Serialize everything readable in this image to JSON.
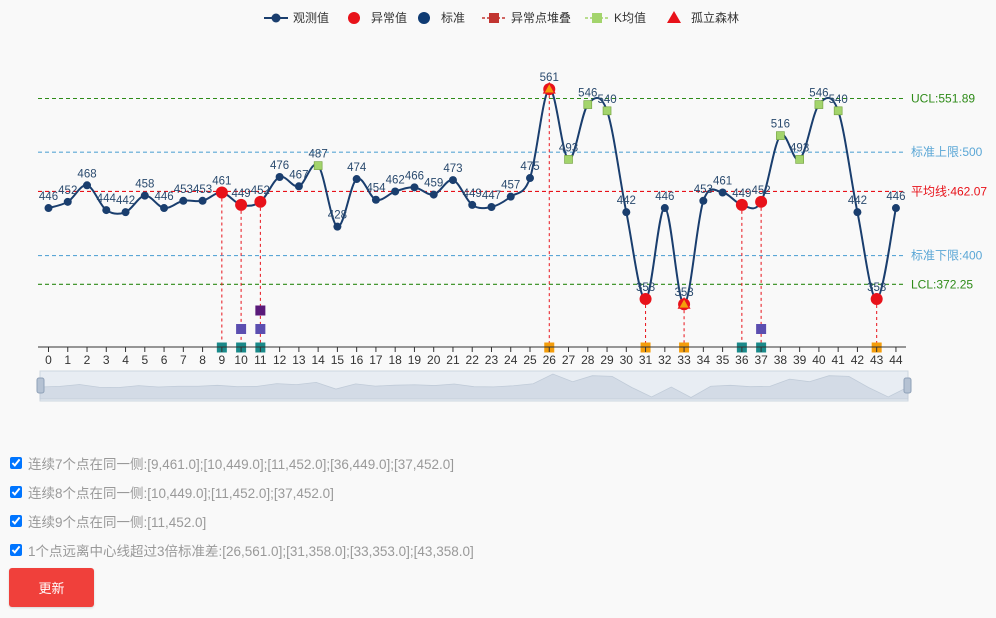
{
  "chart_data": {
    "type": "line",
    "legend": [
      {
        "name": "观测值",
        "color": "#1a3e6e",
        "symbol": "line-circle"
      },
      {
        "name": "异常值",
        "color": "#e8121a",
        "symbol": "circle"
      },
      {
        "name": "标准",
        "color": "#0f3b73",
        "symbol": "circle"
      },
      {
        "name": "异常点堆叠",
        "color": "#c23531",
        "symbol": "line-square"
      },
      {
        "name": "K均值",
        "color": "#a3d46c",
        "symbol": "line-square"
      },
      {
        "name": "孤立森林",
        "color": "#e8121a",
        "symbol": "triangle"
      }
    ],
    "x": [
      0,
      1,
      2,
      3,
      4,
      5,
      6,
      7,
      8,
      9,
      10,
      11,
      12,
      13,
      14,
      15,
      16,
      17,
      18,
      19,
      20,
      21,
      22,
      23,
      24,
      25,
      26,
      27,
      28,
      29,
      30,
      31,
      32,
      33,
      34,
      35,
      36,
      37,
      38,
      39,
      40,
      41,
      42,
      43,
      44
    ],
    "values": [
      446,
      452,
      468,
      444,
      442,
      458,
      446,
      453,
      453,
      461,
      449,
      452,
      476,
      467,
      487,
      428,
      474,
      454,
      462,
      466,
      459,
      473,
      449,
      447,
      457,
      475,
      561,
      493,
      546,
      540,
      442,
      358,
      446,
      353,
      453,
      461,
      449,
      452,
      516,
      493,
      546,
      540,
      442,
      358,
      446
    ],
    "value_labels": [
      "446",
      "452",
      "468",
      "444",
      "442",
      "458",
      "446",
      "453",
      "453",
      "461",
      "449",
      "452",
      "476",
      "467",
      "487",
      "428",
      "474",
      "454",
      "462",
      "466",
      "459",
      "473",
      "449",
      "447",
      "457",
      "475",
      "561",
      "493",
      "546",
      "540",
      "442",
      "358",
      "446",
      "353",
      "453",
      "461",
      "449",
      "452",
      "516",
      "493",
      "546",
      "540",
      "442",
      "358",
      "446"
    ],
    "anomaly_points": [
      9,
      10,
      11,
      26,
      31,
      33,
      36,
      37,
      43
    ],
    "kmeans_points": [
      14,
      26,
      27,
      28,
      29,
      33,
      38,
      39,
      40,
      41
    ],
    "isolation_forest_points": [
      26,
      33
    ],
    "reference_lines": [
      {
        "label": "UCL:551.89",
        "value": 551.89,
        "color": "#2e8b18"
      },
      {
        "label": "标准上限:500",
        "value": 500,
        "color": "#5ba7d6"
      },
      {
        "label": "平均线:462.07",
        "value": 462.07,
        "color": "#e8121a"
      },
      {
        "label": "标准下限:400",
        "value": 400,
        "color": "#5ba7d6"
      },
      {
        "label": "LCL:372.25",
        "value": 372.25,
        "color": "#2e8b18"
      }
    ],
    "stack_markers": [
      {
        "x": 9,
        "rules": [
          1
        ]
      },
      {
        "x": 10,
        "rules": [
          1,
          2
        ]
      },
      {
        "x": 11,
        "rules": [
          1,
          2,
          3
        ]
      },
      {
        "x": 26,
        "rules": [
          4
        ]
      },
      {
        "x": 31,
        "rules": [
          4
        ]
      },
      {
        "x": 33,
        "rules": [
          4
        ]
      },
      {
        "x": 36,
        "rules": [
          1
        ]
      },
      {
        "x": 37,
        "rules": [
          1,
          2
        ]
      },
      {
        "x": 43,
        "rules": [
          4
        ]
      }
    ],
    "rule_colors": {
      "1": "#1a8a8a",
      "2": "#5b4eb0",
      "3": "#5a1a7a",
      "4": "#f49d0b"
    },
    "series_color": "#1a3e6e",
    "kmeans_color": "#a3d46c",
    "anomaly_color": "#e8121a"
  },
  "rules": [
    {
      "checked": true,
      "text": "连续7个点在同一侧:[9,461.0];[10,449.0];[11,452.0];[36,449.0];[37,452.0]"
    },
    {
      "checked": true,
      "text": "连续8个点在同一侧:[10,449.0];[11,452.0];[37,452.0]"
    },
    {
      "checked": true,
      "text": "连续9个点在同一侧:[11,452.0]"
    },
    {
      "checked": true,
      "text": "1个点远离中心线超过3倍标准差:[26,561.0];[31,358.0];[33,353.0];[43,358.0]"
    }
  ],
  "update_button": "更新"
}
